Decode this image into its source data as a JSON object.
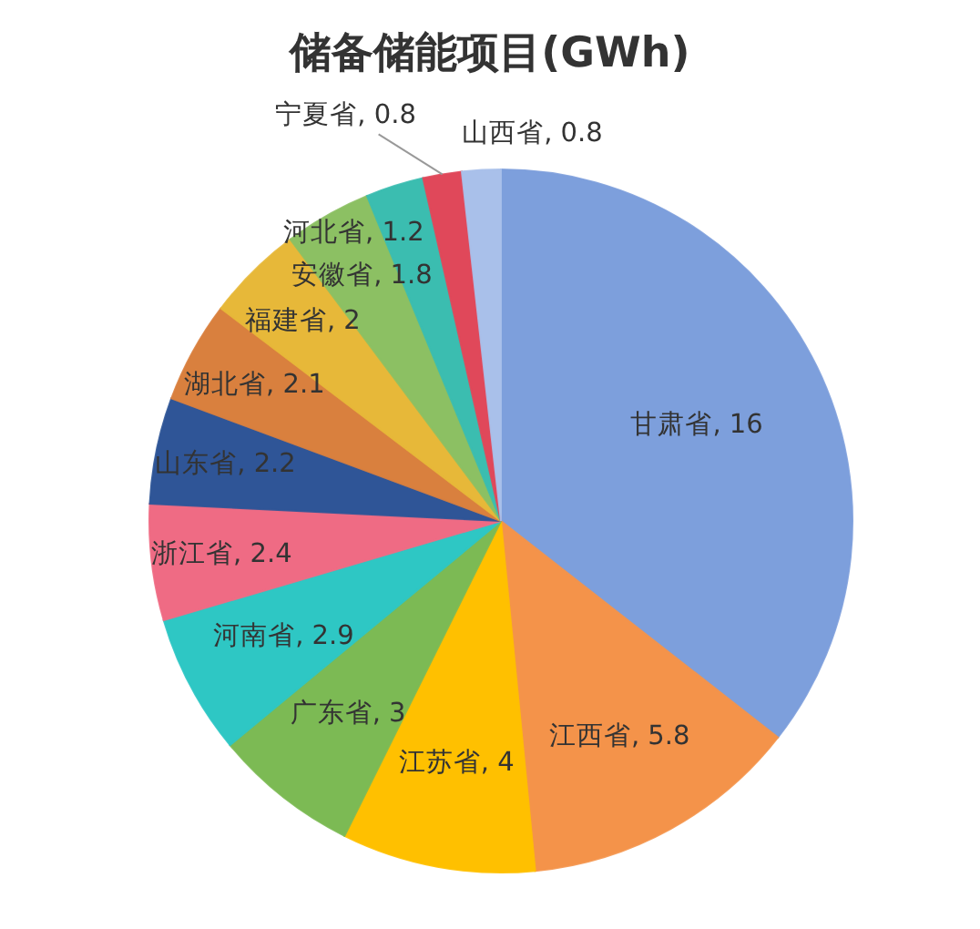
{
  "chart_data": {
    "type": "pie",
    "title": "储备储能项目(GWh)",
    "categories": [
      "甘肃省",
      "江西省",
      "江苏省",
      "广东省",
      "河南省",
      "浙江省",
      "山东省",
      "湖北省",
      "福建省",
      "安徽省",
      "河北省",
      "宁夏省",
      "山西省"
    ],
    "values": [
      16,
      5.8,
      4,
      3,
      2.9,
      2.4,
      2.2,
      2.1,
      2,
      1.8,
      1.2,
      0.8,
      0.8
    ],
    "value_labels": [
      ", 16",
      ", 5.8",
      ", 4",
      ", 3",
      ", 2.9",
      ", 2.4",
      ", 2.2",
      ", 2.1",
      ", 2",
      ", 1.8",
      ", 1.2",
      ", 0.8",
      ", 0.8"
    ],
    "colors": [
      "#7d9fdc",
      "#f4934a",
      "#ffc000",
      "#7cba54",
      "#2ec7c4",
      "#ef6b84",
      "#2f5597",
      "#d9803e",
      "#e7b839",
      "#8cc063",
      "#3bbdb0",
      "#e0485a",
      "#a9c0ea"
    ]
  }
}
